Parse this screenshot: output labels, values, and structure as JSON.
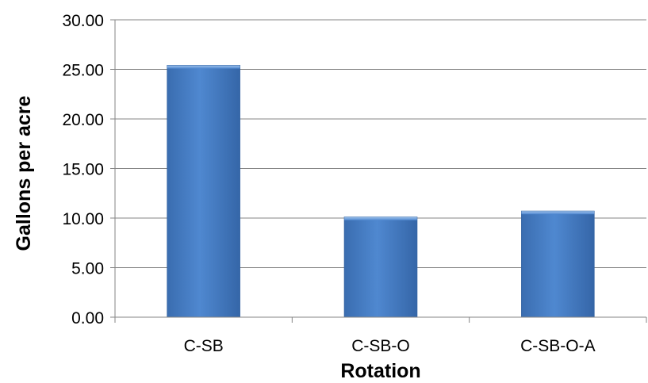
{
  "chart_data": {
    "type": "bar",
    "categories": [
      "C-SB",
      "C-SB-O",
      "C-SB-O-A"
    ],
    "values": [
      25.4,
      10.1,
      10.7
    ],
    "xlabel": "Rotation",
    "ylabel": "Gallons per acre",
    "ylim": [
      0,
      30
    ],
    "yticks": [
      "0.00",
      "5.00",
      "10.00",
      "15.00",
      "20.00",
      "25.00",
      "30.00"
    ],
    "grid": true,
    "legend": "none",
    "bar_color": "#4a7ebb"
  }
}
